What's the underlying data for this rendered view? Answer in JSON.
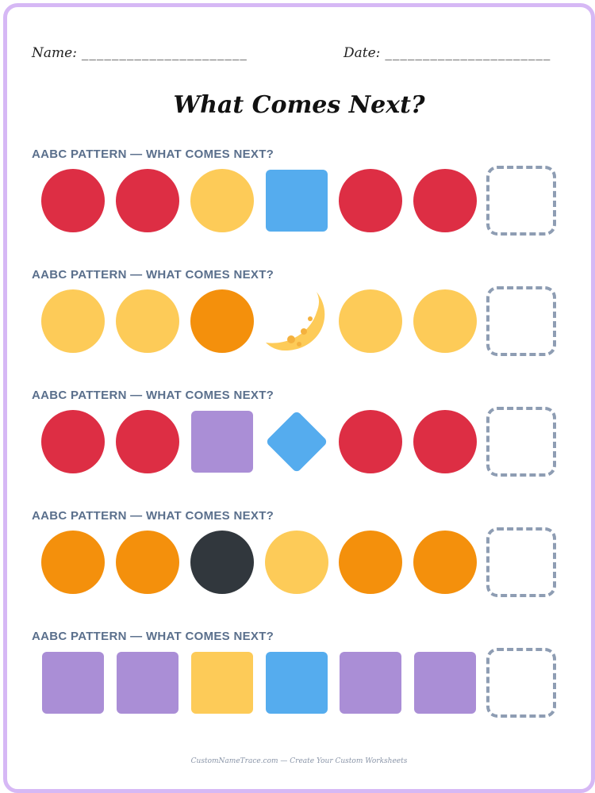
{
  "header": {
    "name_label": "Name:",
    "name_line": "______________________",
    "date_label": "Date:",
    "date_line": "______________________"
  },
  "title": "What Comes Next?",
  "colors": {
    "red": "#dd2e44",
    "yellow": "#fdcb58",
    "orange": "#f4900c",
    "blue": "#55acee",
    "purple": "#aa8ed6",
    "black": "#31373d",
    "dashed_border": "#8e9db3",
    "page_border": "#d6b8f5"
  },
  "rows": [
    {
      "label": "AABC PATTERN — WHAT COMES NEXT?",
      "shapes": [
        {
          "shape": "circle",
          "color": "red",
          "icon": "red-circle-icon"
        },
        {
          "shape": "circle",
          "color": "red",
          "icon": "red-circle-icon"
        },
        {
          "shape": "circle",
          "color": "yellow",
          "icon": "yellow-circle-icon"
        },
        {
          "shape": "square",
          "color": "blue",
          "icon": "blue-square-icon"
        },
        {
          "shape": "circle",
          "color": "red",
          "icon": "red-circle-icon"
        },
        {
          "shape": "circle",
          "color": "red",
          "icon": "red-circle-icon"
        }
      ]
    },
    {
      "label": "AABC PATTERN — WHAT COMES NEXT?",
      "shapes": [
        {
          "shape": "circle",
          "color": "yellow",
          "icon": "yellow-circle-icon"
        },
        {
          "shape": "circle",
          "color": "yellow",
          "icon": "yellow-circle-icon"
        },
        {
          "shape": "circle",
          "color": "orange",
          "icon": "orange-circle-icon"
        },
        {
          "shape": "moon",
          "color": "yellow",
          "icon": "crescent-moon-icon"
        },
        {
          "shape": "circle",
          "color": "yellow",
          "icon": "yellow-circle-icon"
        },
        {
          "shape": "circle",
          "color": "yellow",
          "icon": "yellow-circle-icon"
        }
      ]
    },
    {
      "label": "AABC PATTERN — WHAT COMES NEXT?",
      "shapes": [
        {
          "shape": "circle",
          "color": "red",
          "icon": "red-circle-icon"
        },
        {
          "shape": "circle",
          "color": "red",
          "icon": "red-circle-icon"
        },
        {
          "shape": "square",
          "color": "purple",
          "icon": "purple-square-icon"
        },
        {
          "shape": "diamond",
          "color": "blue",
          "icon": "blue-diamond-icon"
        },
        {
          "shape": "circle",
          "color": "red",
          "icon": "red-circle-icon"
        },
        {
          "shape": "circle",
          "color": "red",
          "icon": "red-circle-icon"
        }
      ]
    },
    {
      "label": "AABC PATTERN — WHAT COMES NEXT?",
      "shapes": [
        {
          "shape": "circle",
          "color": "orange",
          "icon": "orange-circle-icon"
        },
        {
          "shape": "circle",
          "color": "orange",
          "icon": "orange-circle-icon"
        },
        {
          "shape": "circle",
          "color": "black",
          "icon": "black-circle-icon"
        },
        {
          "shape": "circle",
          "color": "yellow",
          "icon": "yellow-circle-icon"
        },
        {
          "shape": "circle",
          "color": "orange",
          "icon": "orange-circle-icon"
        },
        {
          "shape": "circle",
          "color": "orange",
          "icon": "orange-circle-icon"
        }
      ]
    },
    {
      "label": "AABC PATTERN — WHAT COMES NEXT?",
      "shapes": [
        {
          "shape": "square",
          "color": "purple",
          "icon": "purple-square-icon"
        },
        {
          "shape": "square",
          "color": "purple",
          "icon": "purple-square-icon"
        },
        {
          "shape": "square",
          "color": "yellow",
          "icon": "yellow-square-icon"
        },
        {
          "shape": "square",
          "color": "blue",
          "icon": "blue-square-icon"
        },
        {
          "shape": "square",
          "color": "purple",
          "icon": "purple-square-icon"
        },
        {
          "shape": "square",
          "color": "purple",
          "icon": "purple-square-icon"
        }
      ]
    }
  ],
  "footer": "CustomNameTrace.com — Create Your Custom Worksheets"
}
